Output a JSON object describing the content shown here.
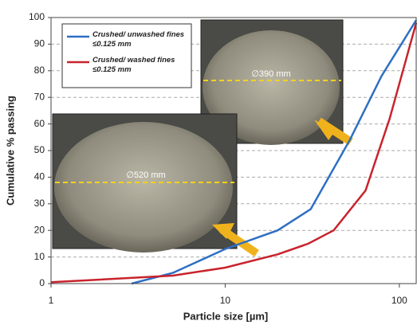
{
  "chart_data": {
    "type": "line",
    "xlabel": "Particle size [µm]",
    "ylabel": "Cumulative % passing",
    "xscale": "log",
    "xlim": [
      1,
      125
    ],
    "xticks": [
      1,
      10,
      100
    ],
    "ylim": [
      0,
      100
    ],
    "yticks": [
      0,
      10,
      20,
      30,
      40,
      50,
      60,
      70,
      80,
      90,
      100
    ],
    "grid": true,
    "legend": "upper left",
    "annotations": [
      "∅390 mm",
      "∅520 mm"
    ],
    "series": [
      {
        "name": "Crushed/ unwashed fines ≤0.125 mm",
        "color": "#2e6fc4",
        "x": [
          2.9,
          5,
          10,
          20,
          31,
          52,
          79,
          125
        ],
        "values": [
          0,
          4,
          13,
          20,
          28,
          54,
          78,
          99
        ]
      },
      {
        "name": "Crushed/ washed fines ≤0.125 mm",
        "color": "#c8232c",
        "x": [
          1,
          5,
          10,
          20,
          30,
          42,
          64,
          88,
          125
        ],
        "values": [
          0.5,
          3,
          6,
          11,
          15,
          20,
          35,
          62,
          98
        ]
      }
    ]
  }
}
